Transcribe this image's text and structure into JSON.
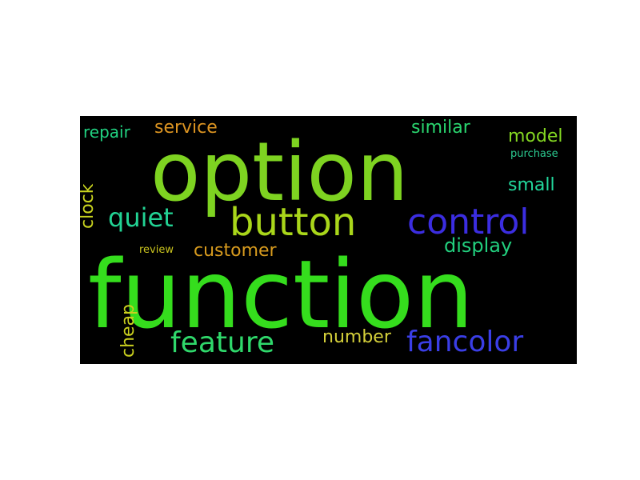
{
  "wordcloud": {
    "background": "#000000",
    "words": {
      "option": {
        "text": "option",
        "color": "#7ed321",
        "weight": 1.0
      },
      "function": {
        "text": "function",
        "color": "#35dd1d",
        "weight": 1.0
      },
      "button": {
        "text": "button",
        "color": "#a9d61a",
        "weight": 0.45
      },
      "control": {
        "text": "control",
        "color": "#3b2de0",
        "weight": 0.42
      },
      "quiet": {
        "text": "quiet",
        "color": "#22d394",
        "weight": 0.3
      },
      "feature": {
        "text": "feature",
        "color": "#2fd86b",
        "weight": 0.34
      },
      "fancolor": {
        "text": "fancolor",
        "color": "#3a3ee6",
        "weight": 0.34
      },
      "customer": {
        "text": "customer",
        "color": "#d89b1e",
        "weight": 0.2
      },
      "display": {
        "text": "display",
        "color": "#22cf7e",
        "weight": 0.22
      },
      "number": {
        "text": "number",
        "color": "#d4cf3a",
        "weight": 0.2
      },
      "service": {
        "text": "service",
        "color": "#dc9421",
        "weight": 0.2
      },
      "repair": {
        "text": "repair",
        "color": "#21d281",
        "weight": 0.18
      },
      "similar": {
        "text": "similar",
        "color": "#2ad66f",
        "weight": 0.2
      },
      "model": {
        "text": "model",
        "color": "#84d822",
        "weight": 0.2
      },
      "small": {
        "text": "small",
        "color": "#22d89c",
        "weight": 0.2
      },
      "purchase": {
        "text": "purchase",
        "color": "#2bc98f",
        "weight": 0.1
      },
      "review": {
        "text": "review",
        "color": "#c9c31e",
        "weight": 0.1
      },
      "clock": {
        "text": "clock",
        "color": "#c9d41f",
        "weight": 0.2,
        "orientation": "vertical"
      },
      "cheap": {
        "text": "cheap",
        "color": "#c9cf1e",
        "weight": 0.2,
        "orientation": "vertical"
      }
    }
  }
}
